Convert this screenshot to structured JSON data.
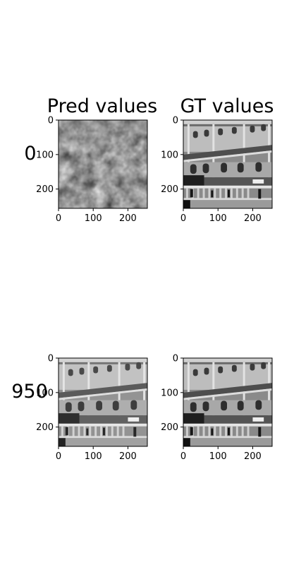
{
  "figure": {
    "col_titles": [
      "Pred values",
      "GT values"
    ],
    "row_labels": [
      "0",
      "950"
    ]
  },
  "chart_data": [
    {
      "type": "image",
      "row_label": "0",
      "title": "Pred values",
      "content": "noise-like predicted grayscale image (dark, blotchy)",
      "colormap": "gray",
      "xlim": [
        0,
        256
      ],
      "ylim": [
        256,
        0
      ],
      "x_ticks": [
        0,
        100,
        200
      ],
      "y_ticks": [
        0,
        100,
        200
      ]
    },
    {
      "type": "image",
      "row_label": "0",
      "title": "GT values",
      "content": "grayscale photo of building labeled STATE BANK OF MYSORE",
      "colormap": "gray",
      "xlim": [
        0,
        256
      ],
      "ylim": [
        256,
        0
      ],
      "x_ticks": [
        0,
        100,
        200
      ],
      "y_ticks": [
        0,
        100,
        200
      ]
    },
    {
      "type": "image",
      "row_label": "950",
      "title": "",
      "content": "reconstructed grayscale photo of building labeled STATE BANK OF MYSORE (slightly softer)",
      "colormap": "gray",
      "xlim": [
        0,
        256
      ],
      "ylim": [
        256,
        0
      ],
      "x_ticks": [
        0,
        100,
        200
      ],
      "y_ticks": [
        0,
        100,
        200
      ]
    },
    {
      "type": "image",
      "row_label": "950",
      "title": "",
      "content": "grayscale photo of building labeled STATE BANK OF MYSORE",
      "colormap": "gray",
      "xlim": [
        0,
        256
      ],
      "ylim": [
        256,
        0
      ],
      "x_ticks": [
        0,
        100,
        200
      ],
      "y_ticks": [
        0,
        100,
        200
      ]
    }
  ]
}
